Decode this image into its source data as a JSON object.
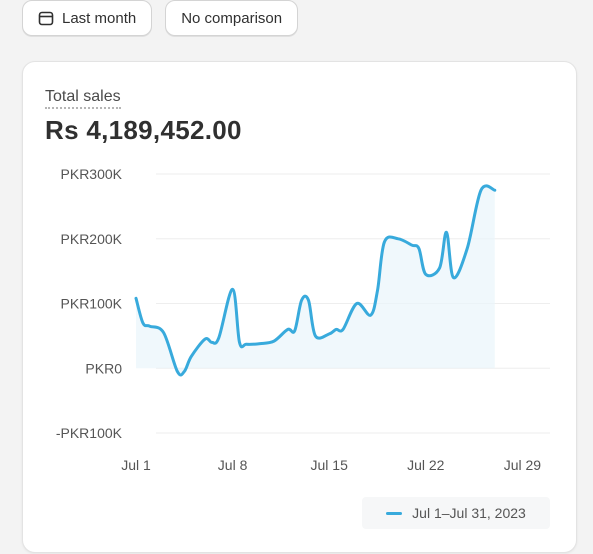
{
  "toolbar": {
    "date_range_label": "Last month",
    "comparison_label": "No comparison",
    "date_range_icon": "calendar-icon"
  },
  "card": {
    "title": "Total sales",
    "value": "Rs 4,189,452.00"
  },
  "colors": {
    "series": "#38aadc",
    "area": "#eaf5fb",
    "grid": "#eeeeee"
  },
  "chart_data": {
    "type": "line",
    "title": "Total sales",
    "ylim": [
      -100000,
      300000
    ],
    "y_ticks": [
      300000,
      200000,
      100000,
      0,
      -100000
    ],
    "y_tick_labels": [
      "PKR300K",
      "PKR200K",
      "PKR100K",
      "PKR0",
      "-PKR100K"
    ],
    "x_tick_labels": [
      "Jul 1",
      "Jul 8",
      "Jul 15",
      "Jul 22",
      "Jul 29"
    ],
    "x_tick_days": [
      1,
      8,
      15,
      22,
      29
    ],
    "xlim": [
      1,
      31
    ],
    "grid": true,
    "legend_position": "bottom-right",
    "series": [
      {
        "name": "Jul 1–Jul 31, 2023",
        "x": [
          1,
          1.5,
          2,
          3,
          4,
          4.5,
          5,
          6,
          6.5,
          7,
          8,
          8.5,
          9,
          10,
          11,
          12,
          12.5,
          13,
          13.5,
          14,
          15,
          15.5,
          16,
          17,
          18,
          18.5,
          19,
          20,
          21,
          21.5,
          22,
          23,
          23.5,
          24,
          25,
          26,
          27
        ],
        "values": [
          108000,
          70000,
          65000,
          55000,
          -5000,
          -5000,
          18000,
          45000,
          40000,
          47000,
          122000,
          40000,
          37000,
          38000,
          42000,
          60000,
          58000,
          105000,
          105000,
          50000,
          53000,
          60000,
          60000,
          100000,
          82000,
          120000,
          195000,
          200000,
          190000,
          185000,
          145000,
          155000,
          210000,
          140000,
          185000,
          275000,
          275000
        ]
      }
    ]
  }
}
